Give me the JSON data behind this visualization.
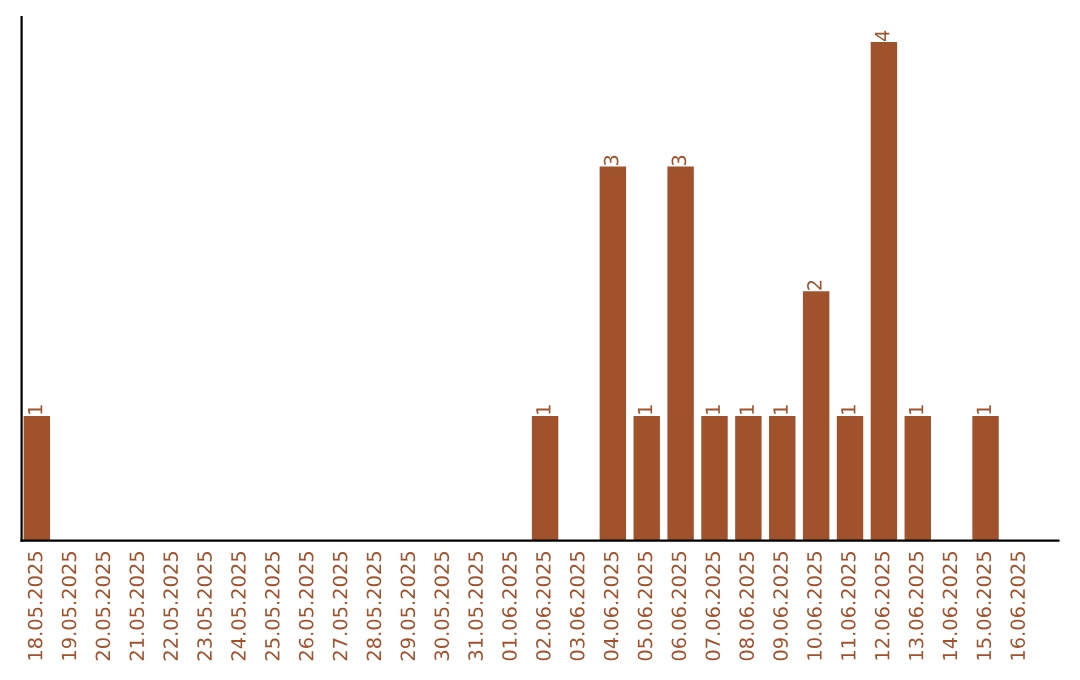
{
  "chart_data": {
    "type": "bar",
    "categories": [
      "18.05.2025",
      "19.05.2025",
      "20.05.2025",
      "21.05.2025",
      "22.05.2025",
      "23.05.2025",
      "24.05.2025",
      "25.05.2025",
      "26.05.2025",
      "27.05.2025",
      "28.05.2025",
      "29.05.2025",
      "30.05.2025",
      "31.05.2025",
      "01.06.2025",
      "02.06.2025",
      "03.06.2025",
      "04.06.2025",
      "05.06.2025",
      "06.06.2025",
      "07.06.2025",
      "08.06.2025",
      "09.06.2025",
      "10.06.2025",
      "11.06.2025",
      "12.06.2025",
      "13.06.2025",
      "14.06.2025",
      "15.06.2025",
      "16.06.2025"
    ],
    "values": [
      1,
      0,
      0,
      0,
      0,
      0,
      0,
      0,
      0,
      0,
      0,
      0,
      0,
      0,
      0,
      1,
      0,
      3,
      1,
      3,
      1,
      1,
      1,
      2,
      1,
      4,
      1,
      0,
      1,
      0
    ],
    "value_labels": [
      "1",
      null,
      null,
      null,
      null,
      null,
      null,
      null,
      null,
      null,
      null,
      null,
      null,
      null,
      null,
      "1",
      null,
      "3",
      "1",
      "3",
      "1",
      "1",
      "1",
      "2",
      "1",
      "4",
      "1",
      null,
      "1",
      null
    ],
    "color": "#a0522d",
    "tick_labels": "x",
    "grid": false,
    "legend": false
  }
}
